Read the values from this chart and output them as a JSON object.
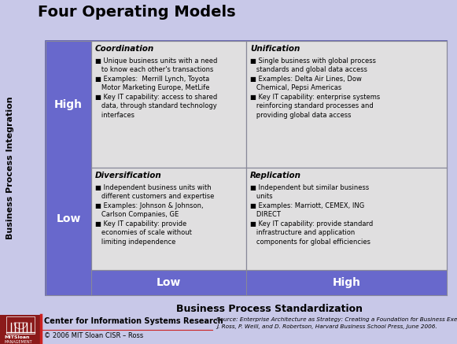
{
  "title": "Four Operating Models",
  "bg_color": "#c8c8e8",
  "purple_color": "#6868cc",
  "cell_bg": "#e0dfe0",
  "text_black": "#000000",
  "ylabel": "Business Process Integration",
  "xlabel": "Business Process Standardization",
  "row_labels": [
    "High",
    "Low"
  ],
  "col_labels": [
    "Low",
    "High"
  ],
  "quadrant_titles": [
    "Coordination",
    "Unification",
    "Diversification",
    "Replication"
  ],
  "quadrant_contents": [
    "■ Unique business units with a need\n   to know each other's transactions\n■ Examples:  Merrill Lynch, Toyota\n   Motor Marketing Europe, MetLife\n■ Key IT capability: access to shared\n   data, through standard technology\n   interfaces",
    "■ Single business with global process\n   standards and global data access\n■ Examples: Delta Air Lines, Dow\n   Chemical, Pepsi Americas\n■ Key IT capability: enterprise systems\n   reinforcing standard processes and\n   providing global data access",
    "■ Independent business units with\n   different customers and expertise\n■ Examples: Johnson & Johnson,\n   Carlson Companies, GE\n■ Key IT capability: provide\n   economies of scale without\n   limiting independence",
    "■ Independent but similar business\n   units\n■ Examples: Marriott, CEMEX, ING\n   DIRECT\n■ Key IT capability: provide standard\n   infrastructure and application\n   components for global efficiencies"
  ],
  "footer_org": "Center for Information Systems Research",
  "footer_copy": "© 2006 MIT Sloan CISR – Ross",
  "footer_source": "Source: Enterprise Architecture as Strategy: Creating a Foundation for Business Execution,\nJ. Ross, P. Weill, and D. Robertson, Harvard Business School Press, June 2006.",
  "mit_color": "#8b1a1a",
  "border_color": "#5555aa",
  "line_color": "#888899"
}
